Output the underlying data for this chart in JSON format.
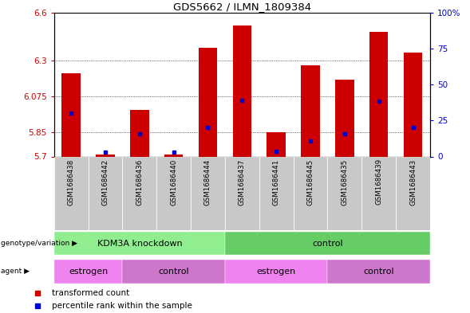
{
  "title": "GDS5662 / ILMN_1809384",
  "samples": [
    "GSM1686438",
    "GSM1686442",
    "GSM1686436",
    "GSM1686440",
    "GSM1686444",
    "GSM1686437",
    "GSM1686441",
    "GSM1686445",
    "GSM1686435",
    "GSM1686439",
    "GSM1686443"
  ],
  "bar_values": [
    6.22,
    5.71,
    5.99,
    5.71,
    6.38,
    6.52,
    5.85,
    6.27,
    6.18,
    6.48,
    6.35
  ],
  "blue_marker_values": [
    5.97,
    5.725,
    5.84,
    5.725,
    5.88,
    6.05,
    5.73,
    5.795,
    5.84,
    6.045,
    5.88
  ],
  "y_min": 5.7,
  "y_max": 6.6,
  "y_ticks_left": [
    5.7,
    5.85,
    6.075,
    6.3,
    6.6
  ],
  "y_ticks_right": [
    0,
    25,
    50,
    75,
    100
  ],
  "bar_color": "#cc0000",
  "blue_color": "#0000cc",
  "genotype_groups": [
    {
      "label": "KDM3A knockdown",
      "start": 0,
      "end": 5,
      "color": "#90EE90"
    },
    {
      "label": "control",
      "start": 5,
      "end": 11,
      "color": "#66CC66"
    }
  ],
  "agent_groups": [
    {
      "label": "estrogen",
      "start": 0,
      "end": 2,
      "color": "#EE82EE"
    },
    {
      "label": "control",
      "start": 2,
      "end": 5,
      "color": "#CC77CC"
    },
    {
      "label": "estrogen",
      "start": 5,
      "end": 8,
      "color": "#EE82EE"
    },
    {
      "label": "control",
      "start": 8,
      "end": 11,
      "color": "#CC77CC"
    }
  ],
  "legend_items": [
    {
      "label": "transformed count",
      "color": "#cc0000"
    },
    {
      "label": "percentile rank within the sample",
      "color": "#0000cc"
    }
  ],
  "genotype_label": "genotype/variation",
  "agent_label": "agent",
  "tick_bg_color": "#c8c8c8"
}
